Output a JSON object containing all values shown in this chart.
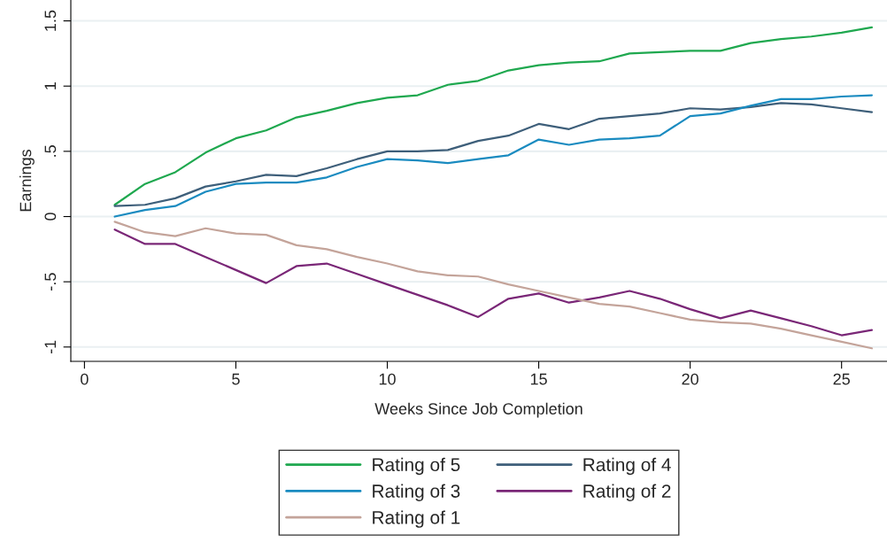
{
  "chart_data": {
    "type": "line",
    "xlabel": "Weeks Since Job Completion",
    "ylabel": "Earnings",
    "x": [
      1,
      2,
      3,
      4,
      5,
      6,
      7,
      8,
      9,
      10,
      11,
      12,
      13,
      14,
      15,
      16,
      17,
      18,
      19,
      20,
      21,
      22,
      23,
      24,
      25,
      26
    ],
    "series": [
      {
        "name": "Rating of 5",
        "color": "#1fa84f",
        "values": [
          0.09,
          0.25,
          0.34,
          0.49,
          0.6,
          0.66,
          0.76,
          0.81,
          0.87,
          0.91,
          0.93,
          1.01,
          1.04,
          1.12,
          1.16,
          1.18,
          1.19,
          1.25,
          1.26,
          1.27,
          1.27,
          1.33,
          1.36,
          1.38,
          1.41,
          1.45
        ]
      },
      {
        "name": "Rating of 4",
        "color": "#3e5f7a",
        "values": [
          0.08,
          0.09,
          0.14,
          0.23,
          0.27,
          0.32,
          0.31,
          0.37,
          0.44,
          0.5,
          0.5,
          0.51,
          0.58,
          0.62,
          0.71,
          0.67,
          0.75,
          0.77,
          0.79,
          0.83,
          0.82,
          0.84,
          0.87,
          0.86,
          0.83,
          0.8
        ]
      },
      {
        "name": "Rating of 3",
        "color": "#1a8bc0",
        "values": [
          0.0,
          0.05,
          0.08,
          0.19,
          0.25,
          0.26,
          0.26,
          0.3,
          0.38,
          0.44,
          0.43,
          0.41,
          0.44,
          0.47,
          0.59,
          0.55,
          0.59,
          0.6,
          0.62,
          0.77,
          0.79,
          0.85,
          0.9,
          0.9,
          0.92,
          0.93
        ]
      },
      {
        "name": "Rating of 2",
        "color": "#7a2777",
        "values": [
          -0.1,
          -0.21,
          -0.21,
          -0.31,
          -0.41,
          -0.51,
          -0.38,
          -0.36,
          -0.44,
          -0.52,
          -0.6,
          -0.68,
          -0.77,
          -0.63,
          -0.59,
          -0.66,
          -0.62,
          -0.57,
          -0.63,
          -0.71,
          -0.78,
          -0.72,
          -0.78,
          -0.84,
          -0.91,
          -0.87
        ]
      },
      {
        "name": "Rating of 1",
        "color": "#c4a49a",
        "values": [
          -0.04,
          -0.12,
          -0.15,
          -0.09,
          -0.13,
          -0.14,
          -0.22,
          -0.25,
          -0.31,
          -0.36,
          -0.42,
          -0.45,
          -0.46,
          -0.52,
          -0.57,
          -0.62,
          -0.67,
          -0.69,
          -0.74,
          -0.79,
          -0.81,
          -0.82,
          -0.86,
          -0.91,
          -0.96,
          -1.01
        ]
      }
    ],
    "xlim": [
      -0.45,
      26.5
    ],
    "xticks": [
      0,
      5,
      10,
      15,
      20,
      25
    ],
    "ylim": [
      -1.11,
      1.66
    ],
    "yticks": [
      {
        "value": -1,
        "label": "-1"
      },
      {
        "value": -0.5,
        "label": "-.5"
      },
      {
        "value": 0,
        "label": "0"
      },
      {
        "value": 0.5,
        "label": ".5"
      },
      {
        "value": 1,
        "label": "1"
      },
      {
        "value": 1.5,
        "label": "1.5"
      }
    ],
    "grid": "y",
    "legend": "bottom",
    "marker": "none",
    "line_style": "solid"
  }
}
